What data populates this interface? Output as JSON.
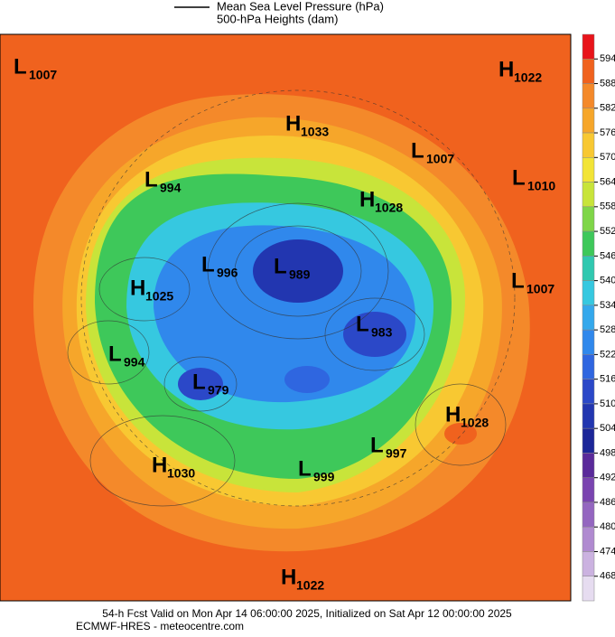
{
  "header": {
    "legend_line": "Mean Sea Level Pressure (hPa)",
    "legend_fill": "500-hPa Heights (dam)"
  },
  "centers": [
    {
      "kind": "L",
      "value": 1007
    },
    {
      "kind": "H",
      "value": 1022
    },
    {
      "kind": "H",
      "value": 1033
    },
    {
      "kind": "L",
      "value": 1007
    },
    {
      "kind": "L",
      "value": 1010
    },
    {
      "kind": "L",
      "value": 994
    },
    {
      "kind": "H",
      "value": 1028
    },
    {
      "kind": "L",
      "value": 996
    },
    {
      "kind": "L",
      "value": 989
    },
    {
      "kind": "H",
      "value": 1025
    },
    {
      "kind": "L",
      "value": 1007
    },
    {
      "kind": "L",
      "value": 983
    },
    {
      "kind": "L",
      "value": 994
    },
    {
      "kind": "L",
      "value": 979
    },
    {
      "kind": "H",
      "value": 1028
    },
    {
      "kind": "L",
      "value": 997
    },
    {
      "kind": "H",
      "value": 1030
    },
    {
      "kind": "L",
      "value": 999
    },
    {
      "kind": "H",
      "value": 1022
    }
  ],
  "colorbar": {
    "ticks": [
      594,
      588,
      582,
      576,
      570,
      564,
      558,
      552,
      546,
      540,
      534,
      528,
      522,
      516,
      510,
      504,
      498,
      492,
      486,
      480,
      474,
      468
    ],
    "colors": [
      "#e8141a",
      "#f0621e",
      "#f4892a",
      "#f6a62a",
      "#f8c832",
      "#f2e436",
      "#c8e43a",
      "#7fd648",
      "#3ec85a",
      "#30c8b0",
      "#36c8e0",
      "#34a8ec",
      "#3088ec",
      "#2f66e0",
      "#2b48c8",
      "#2236b0",
      "#1c2698",
      "#5a2a9a",
      "#7a44b0",
      "#9466c0",
      "#b08ad0",
      "#cbb2e0",
      "#e6dcf0"
    ]
  },
  "footer": {
    "line1": "54-h Fcst Valid on Mon Apr 14 06:00:00 2025, Initialized on Sat Apr 12 00:00:00 2025",
    "line2": "ECMWF-HRES  - meteocentre.com"
  }
}
